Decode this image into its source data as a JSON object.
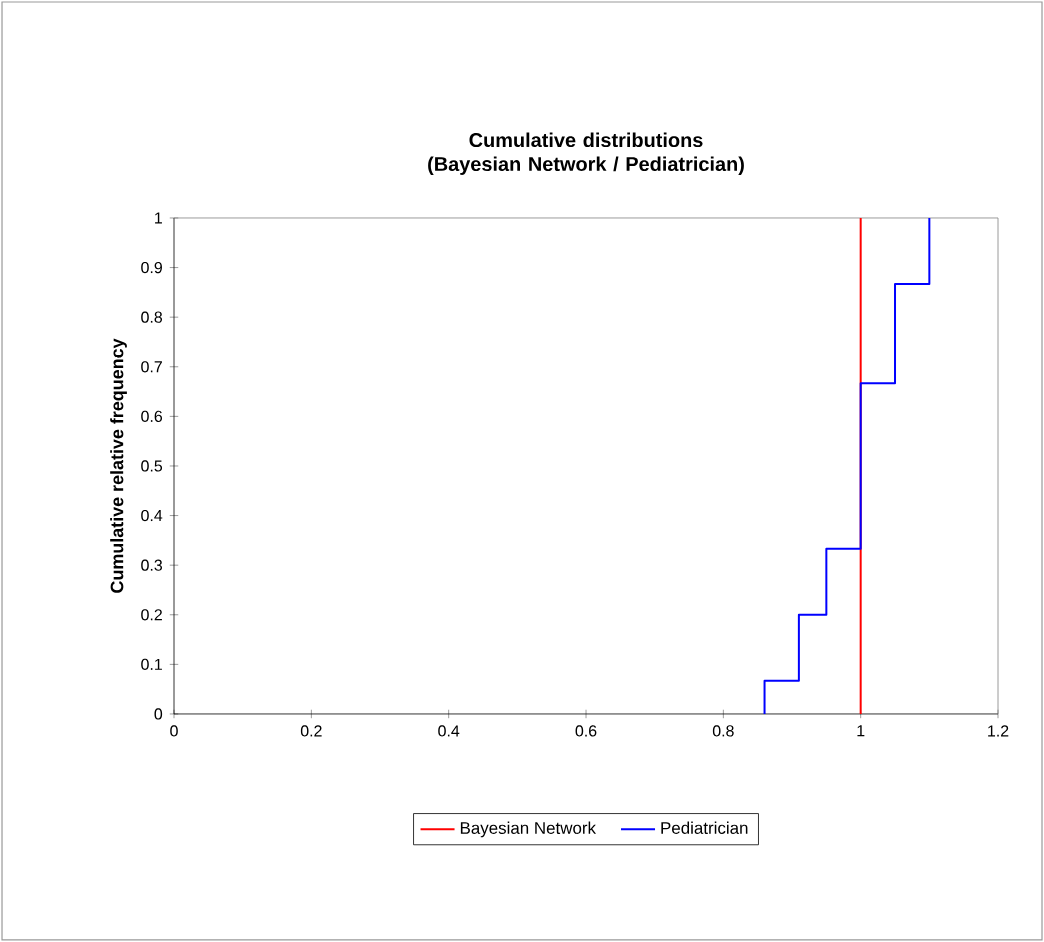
{
  "chart_data": {
    "type": "line",
    "title": "Cumulative distributions (Bayesian Network / Pediatrician)",
    "ylabel": "Cumulative relative frequency",
    "series": [
      {
        "name": "Bayesian Network",
        "color": "#ff0000",
        "x": [
          1,
          1
        ],
        "values": [
          0,
          1
        ]
      },
      {
        "name": "Pediatrician",
        "type": "step",
        "color": "#0000ff",
        "x": [
          0.86,
          0.86,
          0.91,
          0.95,
          1,
          1.05,
          1.1
        ],
        "values": [
          0,
          0.067,
          0.2,
          0.333,
          0.667,
          0.867,
          1
        ]
      }
    ],
    "xlim": [
      0,
      1.2
    ],
    "xticks": [
      0,
      0.2,
      0.4,
      0.6,
      0.8,
      1,
      1.2
    ],
    "ylim": [
      0,
      1
    ],
    "yticks": [
      0,
      0.1,
      0.2,
      0.3,
      0.4,
      0.5,
      0.6,
      0.7,
      0.8,
      0.9,
      1
    ],
    "legend": "bottom",
    "grid": false,
    "marker": "none"
  }
}
